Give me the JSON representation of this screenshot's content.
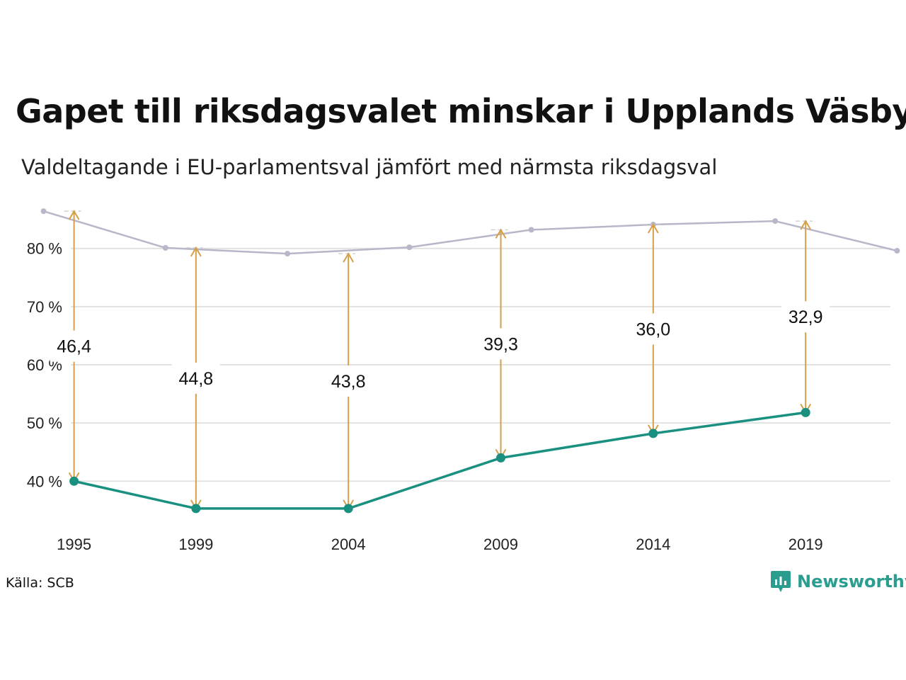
{
  "title": "Gapet till riksdagsvalet minskar i Upplands Väsby",
  "subtitle": "Valdeltagande i EU-parlamentsval jämfört med närmsta riksdagsval",
  "source": "Källa: SCB",
  "brand": "Newsworthy",
  "colors": {
    "eu": "#1a9080",
    "riksdag": "#b8b6c8",
    "gap": "#d4a04a",
    "grid": "#e2e2e2",
    "brand": "#2a9d8f"
  },
  "chart_data": {
    "type": "line",
    "x_ticks": [
      1995,
      1999,
      2004,
      2009,
      2014,
      2019
    ],
    "y_ticks": [
      40,
      50,
      60,
      70,
      80
    ],
    "y_tick_labels": [
      "40 %",
      "50 %",
      "60 %",
      "70 %",
      "80 %"
    ],
    "xlim": [
      1993.5,
      2022.2
    ],
    "ylim": [
      32,
      88
    ],
    "series": [
      {
        "key": "eu",
        "x": [
          1995,
          1999,
          2004,
          2009,
          2014,
          2019
        ],
        "values": [
          40.0,
          35.3,
          35.3,
          44.0,
          48.2,
          51.8
        ]
      },
      {
        "key": "riksdag",
        "x": [
          1994,
          1998,
          2002,
          2006,
          2010,
          2014,
          2018,
          2022
        ],
        "values": [
          86.4,
          80.1,
          79.1,
          80.2,
          83.2,
          84.1,
          84.7,
          79.6
        ]
      }
    ],
    "gaps": [
      {
        "x": 1995,
        "from": 40.0,
        "to": 86.4,
        "label": "46,4"
      },
      {
        "x": 1999,
        "from": 35.3,
        "to": 80.1,
        "label": "44,8"
      },
      {
        "x": 2004,
        "from": 35.3,
        "to": 79.1,
        "label": "43,8"
      },
      {
        "x": 2009,
        "from": 44.0,
        "to": 83.2,
        "label": "39,3"
      },
      {
        "x": 2014,
        "from": 48.2,
        "to": 84.1,
        "label": "36,0"
      },
      {
        "x": 2019,
        "from": 51.8,
        "to": 84.7,
        "label": "32,9"
      }
    ]
  }
}
